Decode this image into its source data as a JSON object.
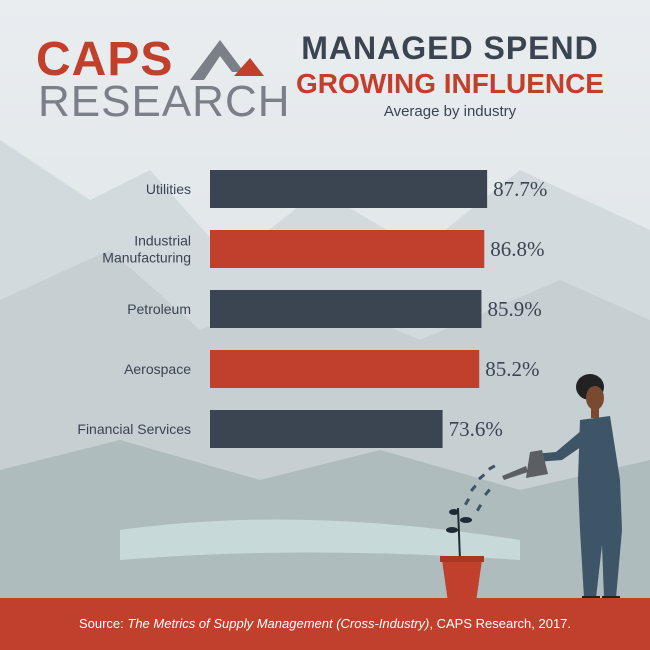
{
  "colors": {
    "dark": "#3b4551",
    "accent": "#c0402b",
    "gray": "#7b8088"
  },
  "logo": {
    "line1": "CAPS",
    "line2": "RESEARCH"
  },
  "header": {
    "title1": "MANAGED SPEND",
    "title2": "GROWING INFLUENCE",
    "subtitle": "Average by industry"
  },
  "chart_data": {
    "type": "bar",
    "orientation": "horizontal",
    "title": "MANAGED SPEND GROWING INFLUENCE",
    "subtitle": "Average by industry",
    "categories": [
      "Utilities",
      "Industrial Manufacturing",
      "Petroleum",
      "Aerospace",
      "Financial Services"
    ],
    "category_lines": [
      [
        "Utilities"
      ],
      [
        "Industrial",
        "Manufacturing"
      ],
      [
        "Petroleum"
      ],
      [
        "Aerospace"
      ],
      [
        "Financial Services"
      ]
    ],
    "values": [
      87.7,
      86.8,
      85.9,
      85.2,
      73.6
    ],
    "value_labels": [
      "87.7%",
      "86.8%",
      "85.9%",
      "85.2%",
      "73.6%"
    ],
    "bar_colors": [
      "#3b4551",
      "#c0402b",
      "#3b4551",
      "#c0402b",
      "#3b4551"
    ],
    "xlim": [
      0,
      100
    ],
    "grid": false,
    "legend": "none"
  },
  "footer": {
    "prefix": "Source: ",
    "work": "The Metrics of Supply Management (Cross-Industry)",
    "suffix": ", CAPS Research, 2017."
  }
}
